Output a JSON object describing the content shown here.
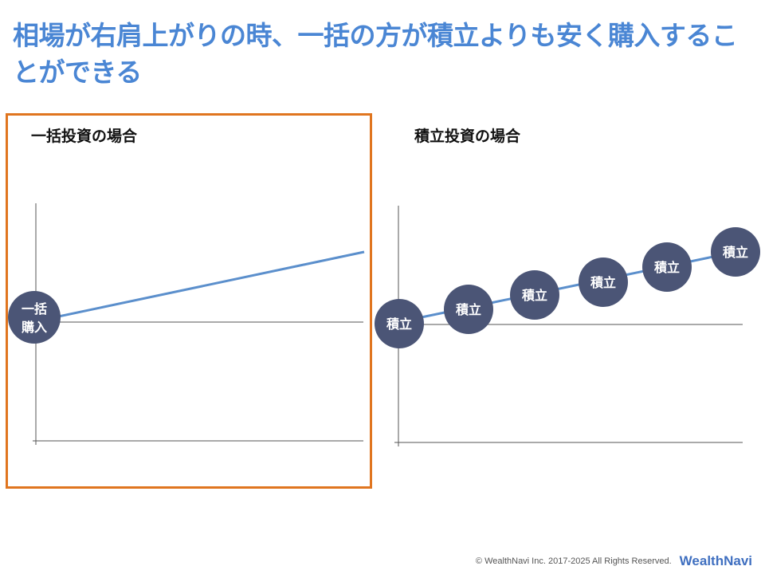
{
  "title": "相場が右肩上がりの時、一括の方が積立よりも安く購入することができる",
  "left_panel": {
    "label": "一括投資の場合",
    "circle_line1": "一括",
    "circle_line2": "購入"
  },
  "right_panel": {
    "label": "積立投資の場合",
    "circles": [
      "積立",
      "積立",
      "積立",
      "積立",
      "積立",
      "積立"
    ]
  },
  "footer": {
    "copyright": "© WealthNavi Inc. 2017-2025 All Rights Reserved.",
    "brand": "WealthNavi"
  },
  "colors": {
    "title": "#4a86d4",
    "highlight": "#e0751f",
    "line": "#5b8fcc",
    "circle": "#4b5576"
  }
}
